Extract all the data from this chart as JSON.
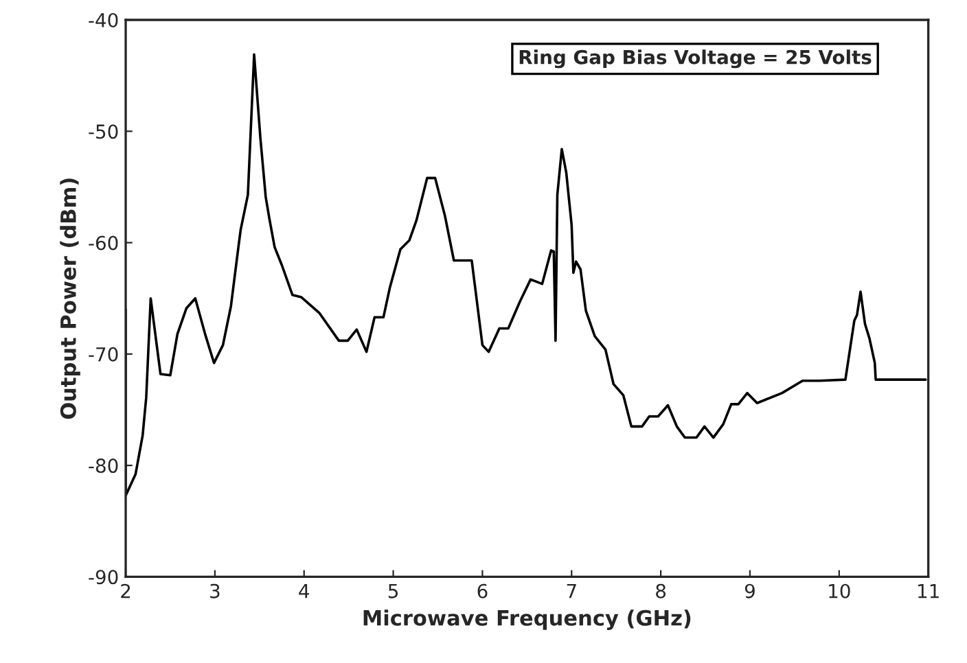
{
  "chart_data": {
    "type": "line",
    "xlabel": "Microwave Frequency (GHz)",
    "ylabel": "Output Power (dBm)",
    "annotations": [
      "Ring Gap Bias Voltage = 25 Volts"
    ],
    "xlim": [
      2,
      11
    ],
    "xticks": [
      2,
      3,
      4,
      5,
      6,
      7,
      8,
      9,
      10,
      11
    ],
    "ylim": [
      -90,
      -40
    ],
    "yticks": [
      -90,
      -80,
      -70,
      -60,
      -50,
      -40
    ],
    "grid": false,
    "legend": false,
    "marker": "none",
    "line_style": "solid",
    "series": [
      {
        "color": "#000000",
        "x": [
          2.0,
          2.0,
          2.11,
          2.19,
          2.23,
          2.28,
          2.39,
          2.5,
          2.58,
          2.68,
          2.78,
          2.89,
          2.99,
          3.09,
          3.18,
          3.27,
          3.29,
          3.37,
          3.44,
          3.51,
          3.57,
          3.61,
          3.67,
          3.75,
          3.87,
          3.97,
          4.17,
          4.39,
          4.49,
          4.59,
          4.7,
          4.79,
          4.89,
          4.96,
          5.08,
          5.18,
          5.26,
          5.38,
          5.47,
          5.58,
          5.68,
          5.88,
          6.0,
          6.07,
          6.19,
          6.29,
          6.42,
          6.54,
          6.67,
          6.77,
          6.8,
          6.82,
          6.84,
          6.89,
          6.94,
          7.0,
          7.02,
          7.05,
          7.1,
          7.16,
          7.26,
          7.38,
          7.47,
          7.58,
          7.67,
          7.79,
          7.87,
          7.97,
          8.08,
          8.18,
          8.27,
          8.4,
          8.49,
          8.59,
          8.7,
          8.79,
          8.87,
          8.97,
          9.08,
          9.36,
          9.59,
          9.78,
          10.07,
          10.17,
          10.2,
          10.24,
          10.29,
          10.34,
          10.4,
          10.41,
          10.97
        ],
        "values": [
          -66,
          -82.7,
          -80.8,
          -77.3,
          -73.9,
          -65,
          -71.8,
          -71.9,
          -68.2,
          -65.9,
          -65,
          -68.2,
          -70.8,
          -69.2,
          -65.7,
          -60,
          -58.8,
          -55.7,
          -43.1,
          -50.6,
          -55.9,
          -57.8,
          -60.4,
          -62,
          -64.7,
          -64.9,
          -66.3,
          -68.8,
          -68.8,
          -67.8,
          -69.8,
          -66.7,
          -66.7,
          -64.1,
          -60.6,
          -59.8,
          -58,
          -54.2,
          -54.2,
          -57.6,
          -61.6,
          -61.6,
          -69.2,
          -69.8,
          -67.7,
          -67.7,
          -65.3,
          -63.3,
          -63.7,
          -60.7,
          -60.8,
          -68.8,
          -55.7,
          -51.6,
          -53.7,
          -58.4,
          -62.7,
          -61.7,
          -62.4,
          -66.1,
          -68.4,
          -69.6,
          -72.7,
          -73.7,
          -76.5,
          -76.5,
          -75.6,
          -75.6,
          -74.6,
          -76.5,
          -77.5,
          -77.5,
          -76.5,
          -77.5,
          -76.3,
          -74.5,
          -74.5,
          -73.5,
          -74.4,
          -73.5,
          -72.4,
          -72.4,
          -72.3,
          -67,
          -66.5,
          -64.4,
          -67.3,
          -68.6,
          -70.8,
          -72.3,
          -72.3
        ]
      }
    ]
  }
}
